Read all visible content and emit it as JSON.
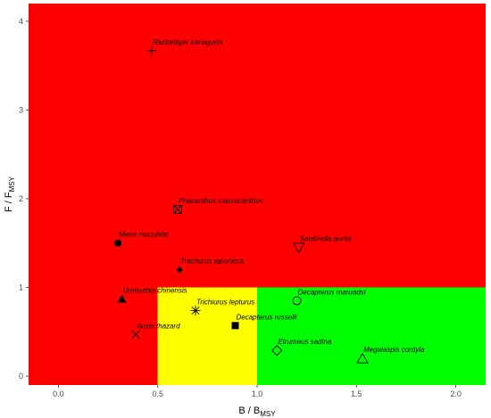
{
  "chart_data": {
    "type": "scatter",
    "xlabel": {
      "main": "B / B",
      "sub": "MSY"
    },
    "ylabel": {
      "main": "F / F",
      "sub": "MSY"
    },
    "xlim": [
      -0.15,
      2.15
    ],
    "ylim": [
      -0.1,
      4.2
    ],
    "x_ticks": [
      "0.0",
      "0.5",
      "1.0",
      "1.5",
      "2.0"
    ],
    "y_ticks": [
      "0",
      "1",
      "2",
      "3",
      "4"
    ],
    "grid": false,
    "legend": "none",
    "zones": [
      {
        "name": "overfishing",
        "color": "#ff0000",
        "x": [
          -0.15,
          2.15
        ],
        "y": [
          1.0,
          4.2
        ]
      },
      {
        "name": "overfished",
        "color": "#ff0000",
        "x": [
          -0.15,
          0.5
        ],
        "y": [
          -0.1,
          1.0
        ]
      },
      {
        "name": "rebuilding",
        "color": "#ffff00",
        "x": [
          0.5,
          1.0
        ],
        "y": [
          -0.1,
          1.0
        ]
      },
      {
        "name": "sustainable",
        "color": "#00ff00",
        "x": [
          1.0,
          2.15
        ],
        "y": [
          -0.1,
          1.0
        ]
      }
    ],
    "points": [
      {
        "label": "Rastrelliger kanagurta",
        "x": 0.47,
        "y": 3.67,
        "marker": "plus"
      },
      {
        "label": "Priacanthus macracanthus",
        "x": 0.6,
        "y": 1.88,
        "marker": "square-x"
      },
      {
        "label": "Mene maculata",
        "x": 0.3,
        "y": 1.5,
        "marker": "circle-filled"
      },
      {
        "label": "Trachurus japonicus",
        "x": 0.61,
        "y": 1.2,
        "marker": "diamond-filled"
      },
      {
        "label": "Sardinella aurita",
        "x": 1.21,
        "y": 1.45,
        "marker": "triangle-down"
      },
      {
        "label": "Uroteuthis chinensis",
        "x": 0.32,
        "y": 0.87,
        "marker": "triangle-filled"
      },
      {
        "label": "Trichiurus lepturus",
        "x": 0.69,
        "y": 0.74,
        "marker": "asterisk"
      },
      {
        "label": "Decapterus maruadsi",
        "x": 1.2,
        "y": 0.85,
        "marker": "circle"
      },
      {
        "label": "Auxis thazard",
        "x": 0.39,
        "y": 0.47,
        "marker": "cross"
      },
      {
        "label": "Decapterus russelli",
        "x": 0.89,
        "y": 0.57,
        "marker": "square-filled"
      },
      {
        "label": "Etrumeus sadina",
        "x": 1.1,
        "y": 0.29,
        "marker": "diamond"
      },
      {
        "label": "Megalaspis cordyla",
        "x": 1.53,
        "y": 0.2,
        "marker": "triangle"
      }
    ]
  }
}
